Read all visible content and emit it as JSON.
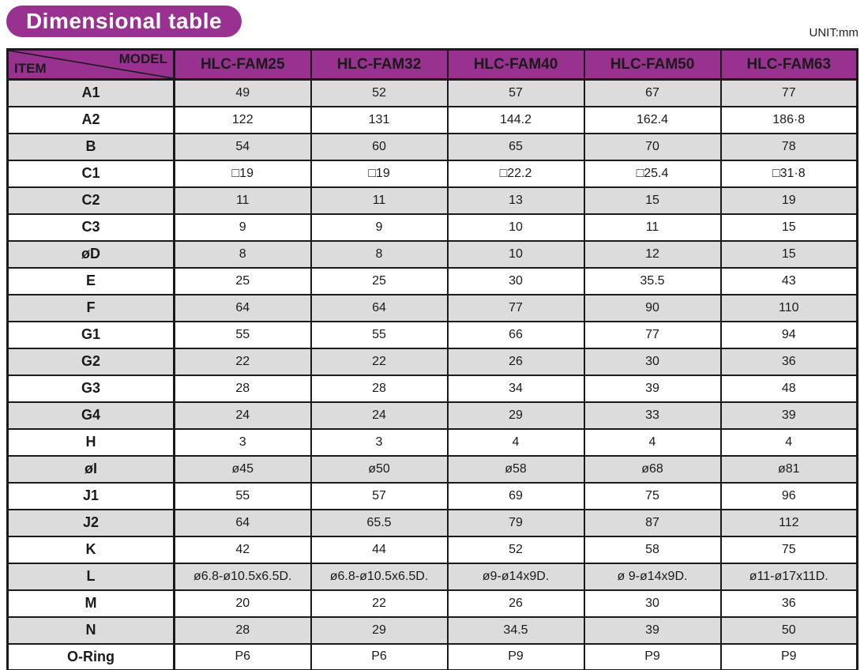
{
  "page": {
    "title": "Dimensional table",
    "unit_label": "UNIT:mm"
  },
  "colors": {
    "accent_purple": "#98318f",
    "row_alt_gray": "#dcdcdc",
    "border_black": "#1a1a1a",
    "badge_text": "#ffffff"
  },
  "table": {
    "corner": {
      "top_label": "MODEL",
      "bottom_label": "ITEM"
    },
    "models": [
      "HLC-FAM25",
      "HLC-FAM32",
      "HLC-FAM40",
      "HLC-FAM50",
      "HLC-FAM63"
    ],
    "rows": [
      {
        "item": "A1",
        "values": [
          "49",
          "52",
          "57",
          "67",
          "77"
        ]
      },
      {
        "item": "A2",
        "values": [
          "122",
          "131",
          "144.2",
          "162.4",
          "186·8"
        ]
      },
      {
        "item": "B",
        "values": [
          "54",
          "60",
          "65",
          "70",
          "78"
        ]
      },
      {
        "item": "C1",
        "values": [
          "□19",
          "□19",
          "□22.2",
          "□25.4",
          "□31·8"
        ]
      },
      {
        "item": "C2",
        "values": [
          "11",
          "11",
          "13",
          "15",
          "19"
        ]
      },
      {
        "item": "C3",
        "values": [
          "9",
          "9",
          "10",
          "11",
          "15"
        ]
      },
      {
        "item": "øD",
        "values": [
          "8",
          "8",
          "10",
          "12",
          "15"
        ]
      },
      {
        "item": "E",
        "values": [
          "25",
          "25",
          "30",
          "35.5",
          "43"
        ]
      },
      {
        "item": "F",
        "values": [
          "64",
          "64",
          "77",
          "90",
          "110"
        ]
      },
      {
        "item": "G1",
        "values": [
          "55",
          "55",
          "66",
          "77",
          "94"
        ]
      },
      {
        "item": "G2",
        "values": [
          "22",
          "22",
          "26",
          "30",
          "36"
        ]
      },
      {
        "item": "G3",
        "values": [
          "28",
          "28",
          "34",
          "39",
          "48"
        ]
      },
      {
        "item": "G4",
        "values": [
          "24",
          "24",
          "29",
          "33",
          "39"
        ]
      },
      {
        "item": "H",
        "values": [
          "3",
          "3",
          "4",
          "4",
          "4"
        ]
      },
      {
        "item": "øI",
        "values": [
          "ø45",
          "ø50",
          "ø58",
          "ø68",
          "ø81"
        ]
      },
      {
        "item": "J1",
        "values": [
          "55",
          "57",
          "69",
          "75",
          "96"
        ]
      },
      {
        "item": "J2",
        "values": [
          "64",
          "65.5",
          "79",
          "87",
          "112"
        ]
      },
      {
        "item": "K",
        "values": [
          "42",
          "44",
          "52",
          "58",
          "75"
        ]
      },
      {
        "item": "L",
        "values": [
          "ø6.8-ø10.5x6.5D.",
          "ø6.8-ø10.5x6.5D.",
          "ø9-ø14x9D.",
          "ø 9-ø14x9D.",
          "ø11-ø17x11D."
        ]
      },
      {
        "item": "M",
        "values": [
          "20",
          "22",
          "26",
          "30",
          "36"
        ]
      },
      {
        "item": "N",
        "values": [
          "28",
          "29",
          "34.5",
          "39",
          "50"
        ]
      },
      {
        "item": "O-Ring",
        "values": [
          "P6",
          "P6",
          "P9",
          "P9",
          "P9"
        ]
      }
    ]
  }
}
